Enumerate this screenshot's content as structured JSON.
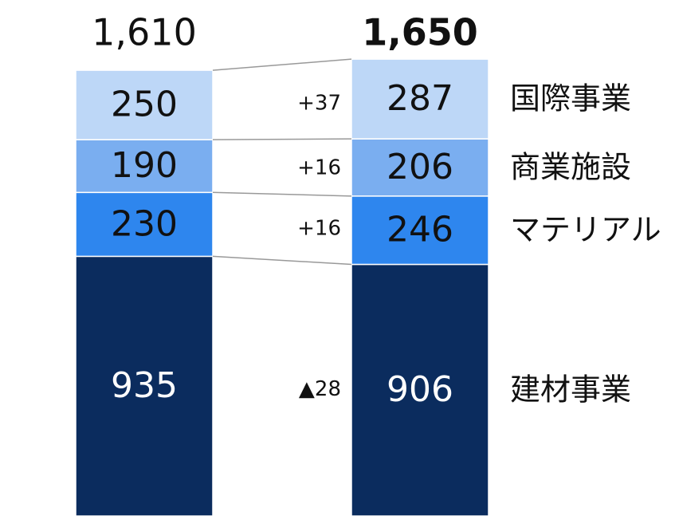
{
  "chart_data": {
    "type": "stacked_bar",
    "categories": [
      null,
      null
    ],
    "totals": [
      1610,
      1650
    ],
    "total_labels": [
      "1,610",
      "1,650"
    ],
    "series": [
      {
        "name": "建材事業",
        "color": "#0b2c5e",
        "values": [
          935,
          906
        ],
        "change": -28,
        "change_label": "▲28"
      },
      {
        "name": "マテリアル",
        "color": "#2e86ee",
        "values": [
          230,
          246
        ],
        "change": 16,
        "change_label": "+16"
      },
      {
        "name": "商業施設",
        "color": "#7aaef0",
        "values": [
          190,
          206
        ],
        "change": 16,
        "change_label": "+16"
      },
      {
        "name": "国際事業",
        "color": "#bdd7f7",
        "values": [
          250,
          287
        ],
        "change": 37,
        "change_label": "+37"
      }
    ],
    "ylim": [
      0,
      1700
    ]
  }
}
